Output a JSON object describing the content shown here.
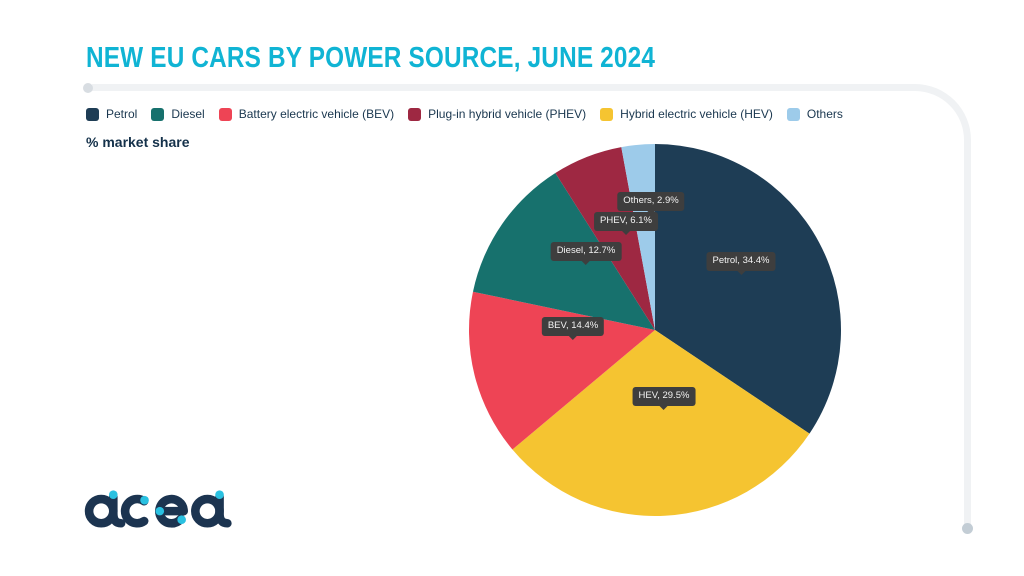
{
  "header": {
    "title": "NEW EU CARS BY POWER SOURCE, JUNE 2024",
    "title_color": "#10B4D4"
  },
  "legend": {
    "items": [
      {
        "label": "Petrol",
        "color": "#1E3D55"
      },
      {
        "label": "Diesel",
        "color": "#17716D"
      },
      {
        "label": "Battery electric vehicle (BEV)",
        "color": "#EE4455"
      },
      {
        "label": "Plug-in hybrid vehicle (PHEV)",
        "color": "#9E2842"
      },
      {
        "label": "Hybrid electric vehicle (HEV)",
        "color": "#F5C431"
      },
      {
        "label": "Others",
        "color": "#9DCBEA"
      }
    ]
  },
  "axis_label": "% market share",
  "chart_data": {
    "type": "pie",
    "title": "NEW EU CARS BY POWER SOURCE, JUNE 2024",
    "unit": "% market share",
    "start_angle_deg": 0,
    "direction": "clockwise",
    "slices": [
      {
        "label": "Petrol",
        "value": 34.4,
        "color": "#1E3D55",
        "callout": "Petrol, 34.4%"
      },
      {
        "label": "HEV",
        "value": 29.5,
        "color": "#F5C431",
        "callout": "HEV, 29.5%"
      },
      {
        "label": "BEV",
        "value": 14.4,
        "color": "#EE4455",
        "callout": "BEV, 14.4%"
      },
      {
        "label": "Diesel",
        "value": 12.7,
        "color": "#17716D",
        "callout": "Diesel, 12.7%"
      },
      {
        "label": "PHEV",
        "value": 6.1,
        "color": "#9E2842",
        "callout": "PHEV, 6.1%"
      },
      {
        "label": "Others",
        "value": 2.9,
        "color": "#9DCBEA",
        "callout": "Others, 2.9%"
      }
    ]
  },
  "logo": {
    "text": "acea",
    "color": "#1C3450",
    "dot_color": "#2AC1E1"
  }
}
